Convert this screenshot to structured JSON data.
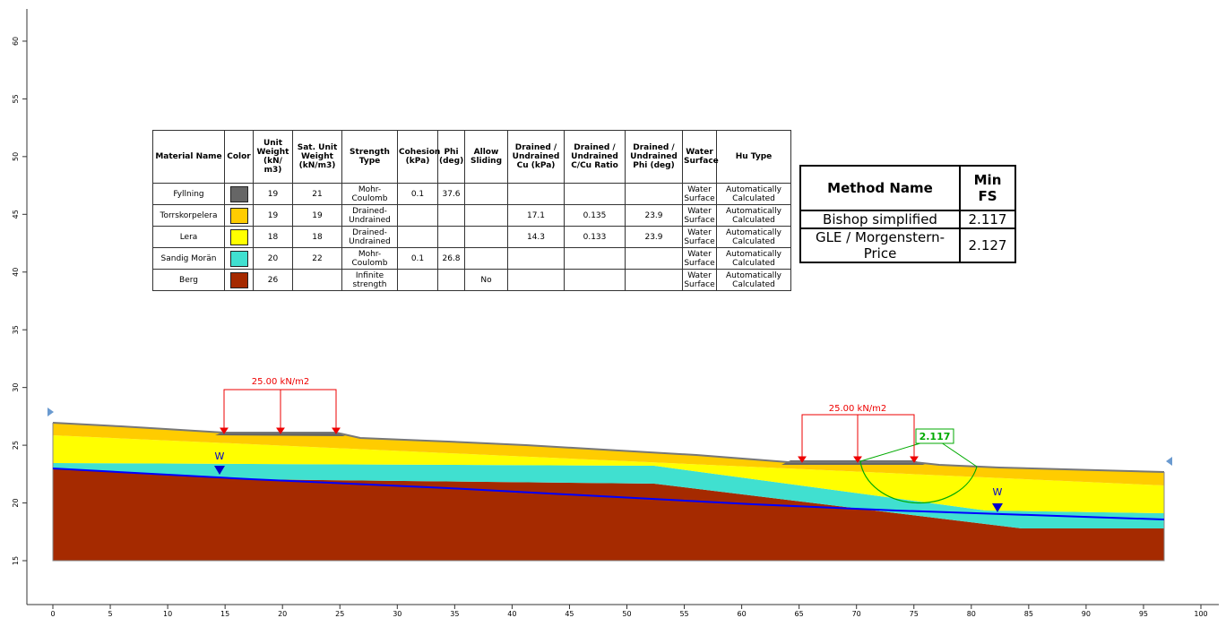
{
  "x_axis": {
    "ticks": [
      0,
      5,
      10,
      15,
      20,
      25,
      30,
      35,
      40,
      45,
      50,
      55,
      60,
      65,
      70,
      75,
      80,
      85,
      90,
      95,
      100
    ]
  },
  "y_axis": {
    "ticks": [
      15,
      20,
      25,
      30,
      35,
      40,
      45,
      50,
      55,
      60
    ]
  },
  "materials_table": {
    "header": [
      "Material Name",
      "Color",
      "Unit Weight (kN/ m3)",
      "Sat. Unit Weight (kN/m3)",
      "Strength Type",
      "Cohesion (kPa)",
      "Phi (deg)",
      "Allow Sliding",
      "Drained / Undrained Cu (kPa)",
      "Drained / Undrained C/Cu Ratio",
      "Drained / Undrained Phi (deg)",
      "Water Surface",
      "Hu Type"
    ],
    "rows": [
      [
        "Fyllning",
        null,
        "19",
        "21",
        "Mohr-Coulomb",
        "0.1",
        "37.6",
        null,
        null,
        null,
        null,
        "Water Surface",
        "Automatically Calculated"
      ],
      [
        "Torrskorpelera",
        null,
        "19",
        "19",
        "Drained-Undrained",
        null,
        null,
        null,
        "17.1",
        "0.135",
        "23.9",
        "Water Surface",
        "Automatically Calculated"
      ],
      [
        "Lera",
        null,
        "18",
        "18",
        "Drained-Undrained",
        null,
        null,
        null,
        "14.3",
        "0.133",
        "23.9",
        "Water Surface",
        "Automatically Calculated"
      ],
      [
        "Sandig Morän",
        null,
        "20",
        "22",
        "Mohr-Coulomb",
        "0.1",
        "26.8",
        null,
        null,
        null,
        null,
        "Water Surface",
        "Automatically Calculated"
      ],
      [
        "Berg",
        null,
        "26",
        null,
        "Infinite strength",
        null,
        null,
        "No",
        null,
        null,
        null,
        "Water Surface",
        "Automatically Calculated"
      ]
    ]
  },
  "methods_table": {
    "header": [
      "Method Name",
      "Min FS"
    ],
    "rows": [
      [
        "Bishop simplified",
        "2.117"
      ],
      [
        "GLE / Morgenstern-Price",
        "2.127"
      ]
    ]
  },
  "loads": [
    {
      "label": "25.00 kN/m2"
    },
    {
      "label": "25.00 kN/m2"
    }
  ],
  "water_labels": [
    "W",
    "W"
  ],
  "slip_surface_label": "2.117"
}
